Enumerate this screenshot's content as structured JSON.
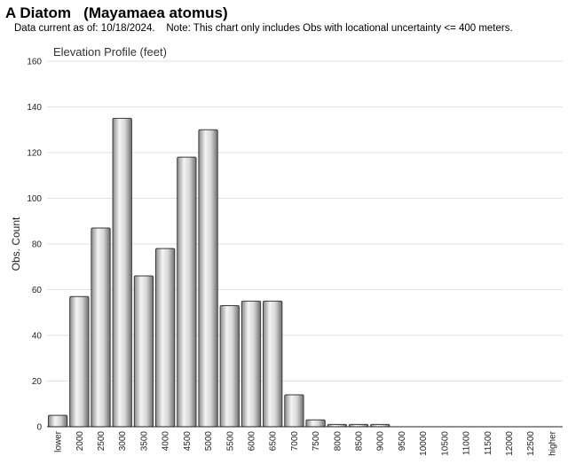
{
  "header": {
    "title": "A Diatom   (Mayamaea atomus)",
    "subtitle": "Data current as of: 10/18/2024.    Note: This chart only includes Obs with locational uncertainty <= 400 meters."
  },
  "chart_data": {
    "type": "bar",
    "title": "Elevation Profile (feet)",
    "xlabel": "",
    "ylabel": "Obs. Count",
    "ylim": [
      0,
      160
    ],
    "yticks": [
      0,
      20,
      40,
      60,
      80,
      100,
      120,
      140,
      160
    ],
    "grid": true,
    "categories": [
      "lower",
      "2000",
      "2500",
      "3000",
      "3500",
      "4000",
      "4500",
      "5000",
      "5500",
      "6000",
      "6500",
      "7000",
      "7500",
      "8000",
      "8500",
      "9000",
      "9500",
      "10000",
      "10500",
      "11000",
      "11500",
      "12000",
      "12500",
      "higher"
    ],
    "values": [
      5,
      57,
      87,
      135,
      66,
      78,
      118,
      130,
      53,
      55,
      55,
      14,
      3,
      1,
      1,
      1,
      0,
      0,
      0,
      0,
      0,
      0,
      0,
      0
    ],
    "bar_color": "#b8b8b8"
  }
}
